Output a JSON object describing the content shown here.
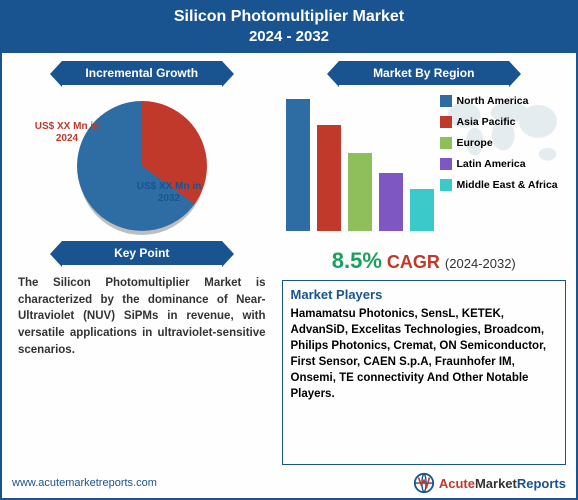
{
  "header": {
    "title": "Silicon Photomultiplier Market",
    "years": "2024 - 2032"
  },
  "left": {
    "ribbon1": "Incremental Growth",
    "pie": {
      "slice_2024": {
        "label": "US$ XX Mn in 2024",
        "color": "#c0392b",
        "deg": 126
      },
      "slice_2032": {
        "label": "US$ XX Mn in 2032",
        "color": "#2e6da4",
        "deg": 234
      }
    },
    "ribbon2": "Key Point",
    "keypoint": "The Silicon Photomultiplier Market is characterized by the dominance of Near-Ultraviolet (NUV) SiPMs in revenue, with versatile applications in ultraviolet-sensitive scenarios."
  },
  "right": {
    "ribbon": "Market By Region",
    "bars": [
      {
        "h": 132,
        "color": "#2e6da4"
      },
      {
        "h": 106,
        "color": "#c0392b"
      },
      {
        "h": 78,
        "color": "#8fbf5a"
      },
      {
        "h": 58,
        "color": "#7e57c2"
      },
      {
        "h": 42,
        "color": "#3cc9c9"
      }
    ],
    "legend": [
      {
        "label": "North America",
        "color": "#2e6da4"
      },
      {
        "label": "Asia Pacific",
        "color": "#c0392b"
      },
      {
        "label": "Europe",
        "color": "#8fbf5a"
      },
      {
        "label": "Latin America",
        "color": "#7e57c2"
      },
      {
        "label": "Middle East & Africa",
        "color": "#3cc9c9"
      }
    ],
    "cagr": {
      "pct": "8.5%",
      "label": "CAGR",
      "years": "(2024-2032)"
    },
    "players_title": "Market Players",
    "players": "Hamamatsu Photonics, SensL, KETEK, AdvanSiD, Excelitas Technologies, Broadcom, Philips Photonics, Cremat, ON Semiconductor, First Sensor, CAEN S.p.A,  Fraunhofer IM, Onsemi, TE connectivity And Other Notable Players."
  },
  "footer": {
    "url": "www.acutemarketreports.com",
    "logo": {
      "t1": "Acute",
      "t2": "Market",
      "t3": "Reports"
    }
  }
}
